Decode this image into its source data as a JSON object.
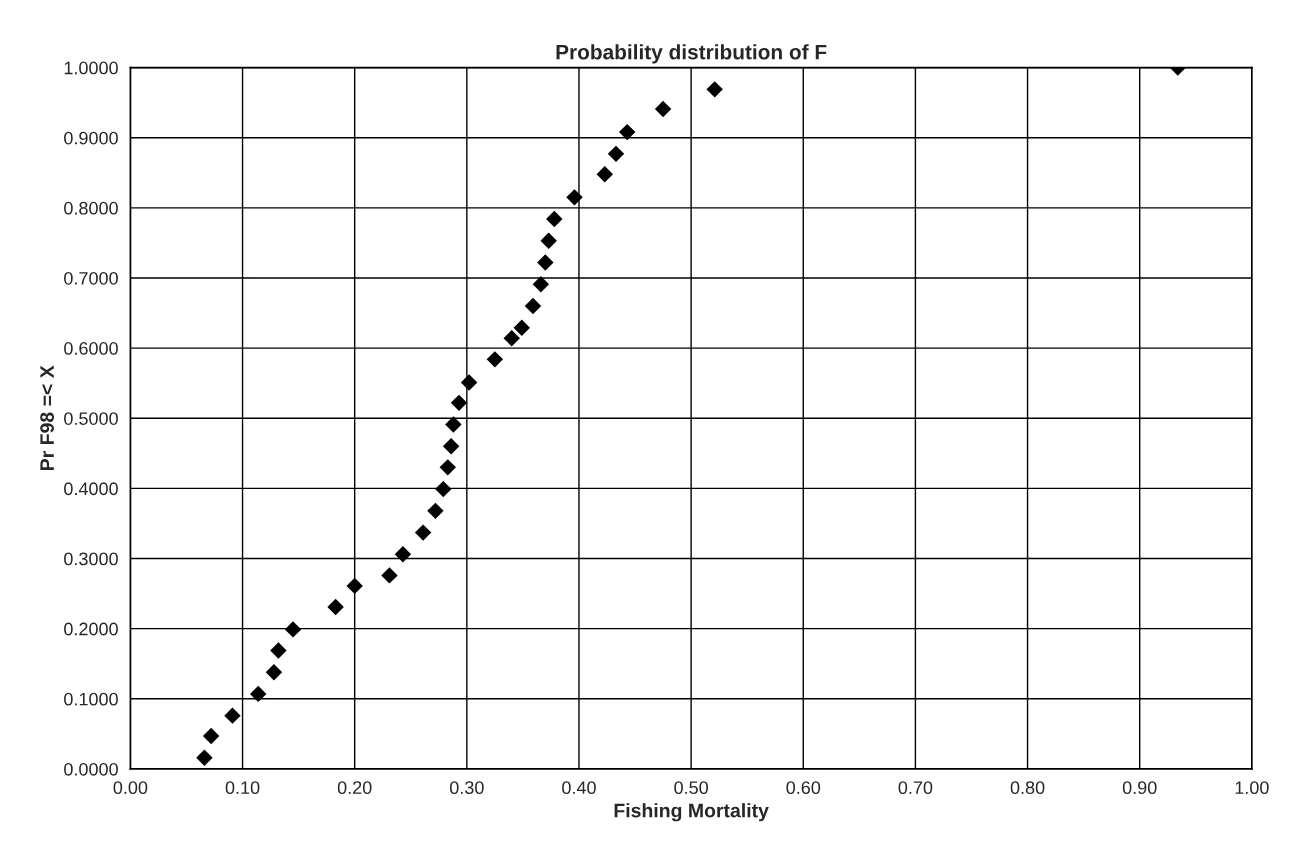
{
  "chart_data": {
    "type": "scatter",
    "title": "Probability distribution of F",
    "xlabel": "Fishing Mortality",
    "ylabel": "Pr F98 =< X",
    "x": [
      0.066,
      0.072,
      0.091,
      0.114,
      0.128,
      0.132,
      0.145,
      0.183,
      0.2,
      0.231,
      0.243,
      0.261,
      0.272,
      0.279,
      0.283,
      0.286,
      0.288,
      0.293,
      0.302,
      0.325,
      0.34,
      0.349,
      0.359,
      0.366,
      0.37,
      0.373,
      0.378,
      0.396,
      0.423,
      0.433,
      0.443,
      0.475,
      0.521,
      0.934
    ],
    "series": [
      {
        "color": "#000000",
        "values": [
          0.016,
          0.047,
          0.076,
          0.107,
          0.138,
          0.169,
          0.199,
          0.231,
          0.261,
          0.276,
          0.306,
          0.337,
          0.368,
          0.399,
          0.43,
          0.46,
          0.491,
          0.522,
          0.551,
          0.584,
          0.614,
          0.629,
          0.66,
          0.691,
          0.722,
          0.753,
          0.784,
          0.815,
          0.848,
          0.877,
          0.908,
          0.941,
          0.969,
          1.0
        ]
      }
    ],
    "xlim": [
      0,
      1
    ],
    "ylim": [
      0,
      1
    ],
    "xticks": [
      {
        "value": 0,
        "label": "0.00"
      },
      {
        "value": 0.1,
        "label": "0.10"
      },
      {
        "value": 0.2,
        "label": "0.20"
      },
      {
        "value": 0.3,
        "label": "0.30"
      },
      {
        "value": 0.4,
        "label": "0.40"
      },
      {
        "value": 0.5,
        "label": "0.50"
      },
      {
        "value": 0.6,
        "label": "0.60"
      },
      {
        "value": 0.7,
        "label": "0.70"
      },
      {
        "value": 0.8,
        "label": "0.80"
      },
      {
        "value": 0.9,
        "label": "0.90"
      },
      {
        "value": 1,
        "label": "1.00"
      }
    ],
    "yticks": [
      {
        "value": 0,
        "label": "0.0000"
      },
      {
        "value": 0.1,
        "label": "0.1000"
      },
      {
        "value": 0.2,
        "label": "0.2000"
      },
      {
        "value": 0.3,
        "label": "0.3000"
      },
      {
        "value": 0.4,
        "label": "0.4000"
      },
      {
        "value": 0.5,
        "label": "0.5000"
      },
      {
        "value": 0.6,
        "label": "0.6000"
      },
      {
        "value": 0.7,
        "label": "0.7000"
      },
      {
        "value": 0.8,
        "label": "0.8000"
      },
      {
        "value": 0.9,
        "label": "0.9000"
      },
      {
        "value": 1,
        "label": "1.0000"
      }
    ],
    "grid": true,
    "marker": "diamond",
    "legend": false
  }
}
